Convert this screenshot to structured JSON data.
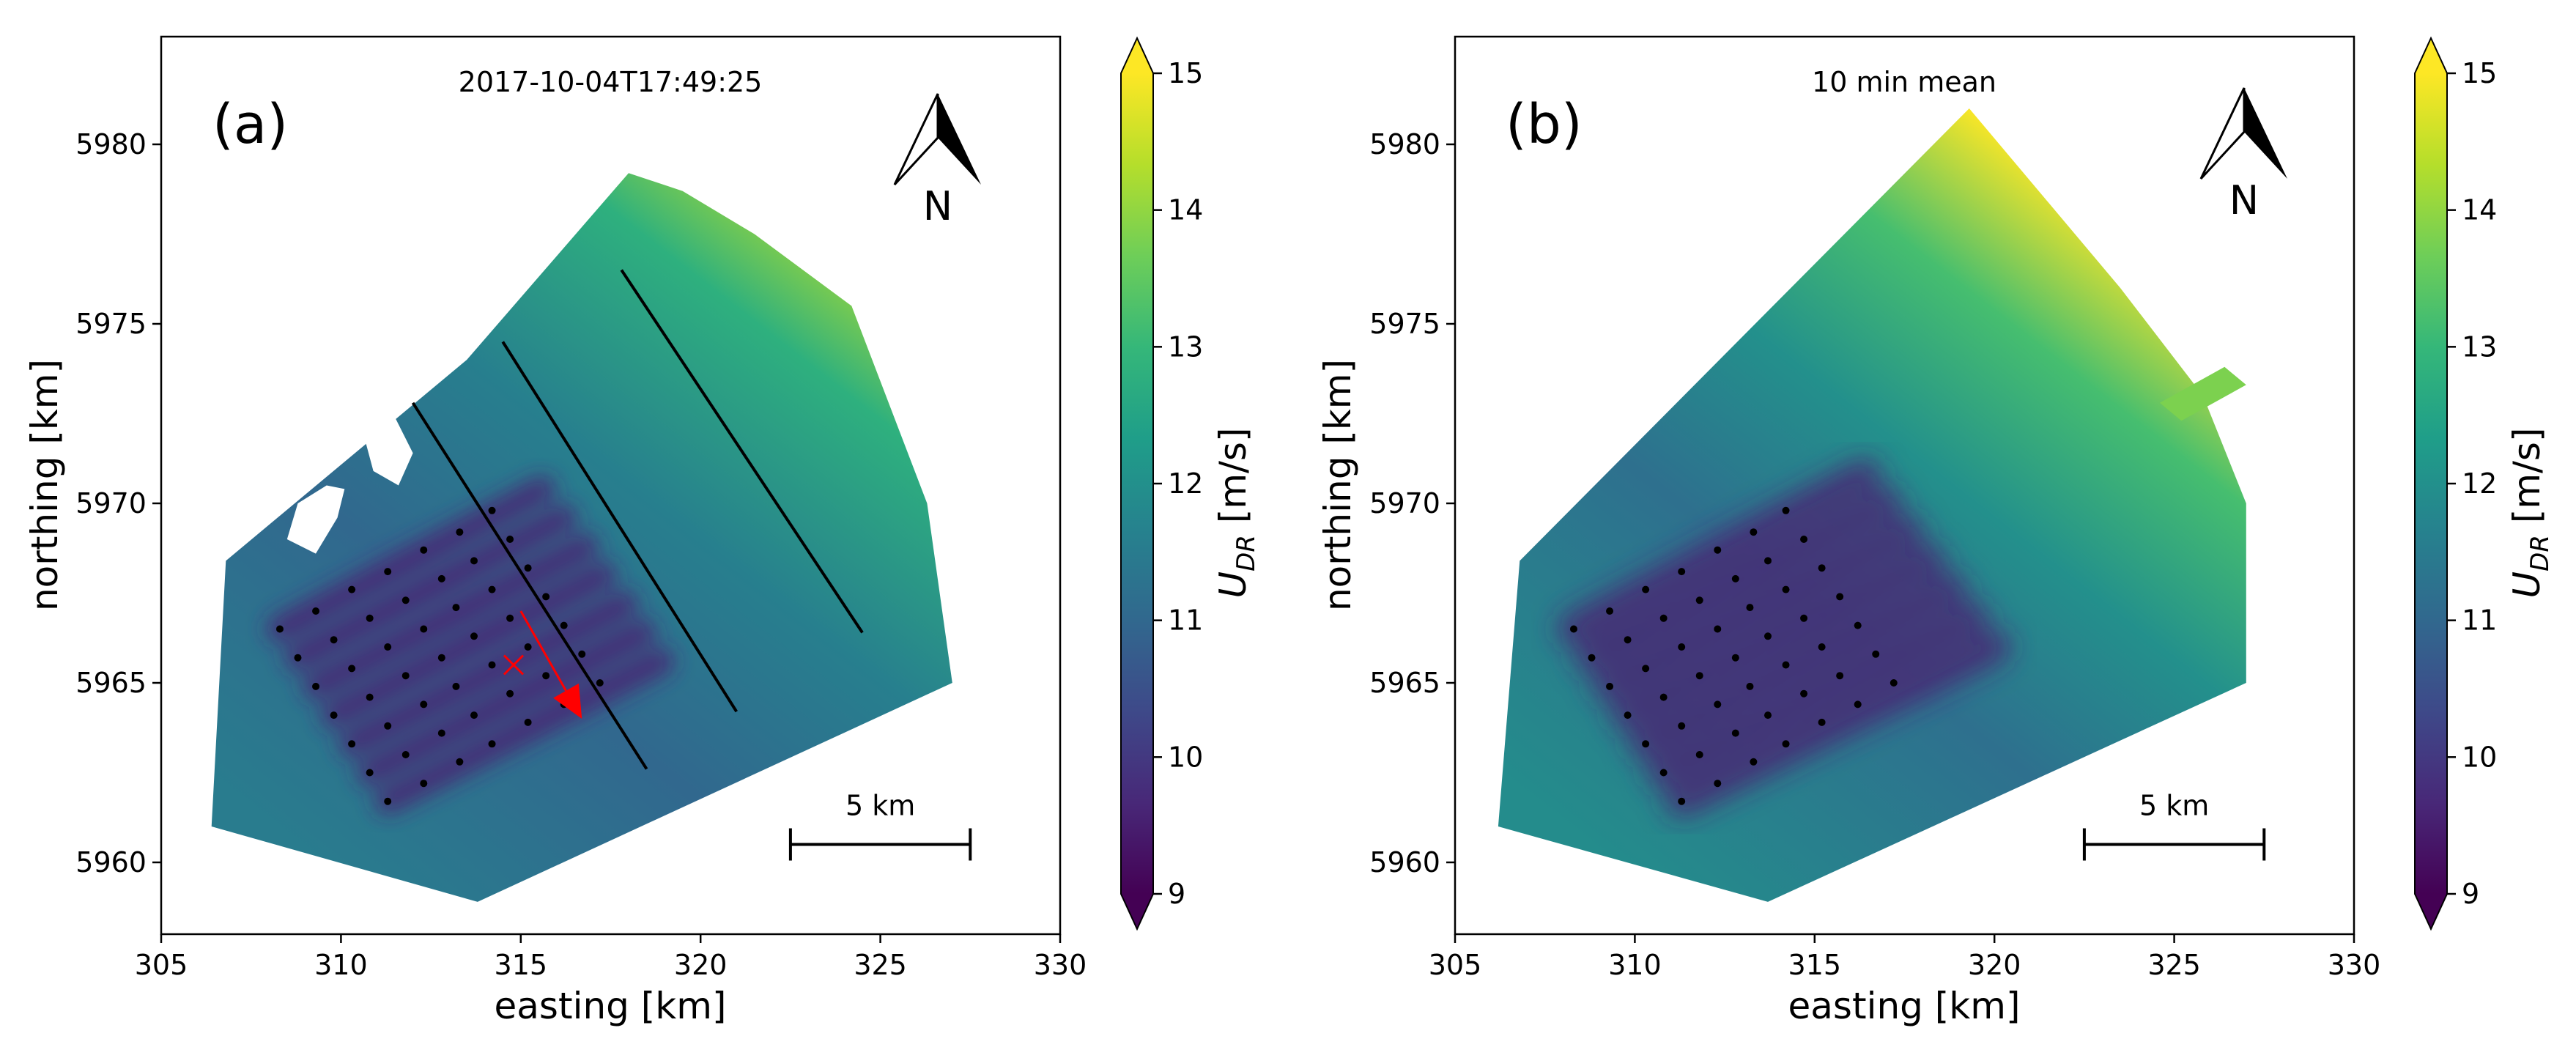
{
  "chart_data": [
    {
      "type": "heatmap",
      "panel_label": "(a)",
      "title": "2017-10-04T17:49:25",
      "xlabel": "easting [km]",
      "ylabel": "northing [km]",
      "xlim": [
        305,
        330
      ],
      "ylim": [
        5958,
        5983
      ],
      "xticks": [
        305,
        310,
        315,
        320,
        325,
        330
      ],
      "yticks": [
        5960,
        5965,
        5970,
        5975,
        5980
      ],
      "colorbar": {
        "label_main": "U",
        "label_sub": "DR",
        "label_unit": " [m/s]",
        "ticks": [
          9,
          10,
          11,
          12,
          13,
          14,
          15
        ],
        "range": [
          9,
          15
        ]
      },
      "north_arrow": "N",
      "scale_bar": {
        "label": "5 km",
        "from": 322.5,
        "to": 327.5,
        "y": 5960.5
      },
      "scan_polygon": [
        [
          306.4,
          5961.0
        ],
        [
          306.8,
          5968.4
        ],
        [
          313.5,
          5974.0
        ],
        [
          318.0,
          5979.2
        ],
        [
          319.5,
          5978.7
        ],
        [
          321.5,
          5977.5
        ],
        [
          324.2,
          5975.5
        ],
        [
          326.3,
          5970.0
        ],
        [
          327.0,
          5965.0
        ],
        [
          313.8,
          5958.9
        ]
      ],
      "invalid_regions": [
        [
          [
            308.5,
            5969.0
          ],
          [
            309.3,
            5968.6
          ],
          [
            309.9,
            5969.6
          ],
          [
            310.1,
            5970.4
          ],
          [
            309.6,
            5970.5
          ],
          [
            308.8,
            5970.0
          ]
        ],
        [
          [
            310.5,
            5972.4
          ],
          [
            311.4,
            5972.6
          ],
          [
            312.0,
            5971.4
          ],
          [
            311.6,
            5970.5
          ],
          [
            310.9,
            5970.9
          ]
        ]
      ],
      "cross_sections": [
        [
          [
            312.0,
            5972.8
          ],
          [
            318.5,
            5962.6
          ]
        ],
        [
          [
            314.5,
            5974.5
          ],
          [
            321.0,
            5964.2
          ]
        ],
        [
          [
            317.8,
            5976.5
          ],
          [
            324.5,
            5966.4
          ]
        ]
      ],
      "wind_arrow": {
        "from": [
          315.0,
          5967.0
        ],
        "to": [
          316.7,
          5964.0
        ]
      },
      "marker_x": [
        314.8,
        5965.5
      ],
      "turbine_rows": [
        [
          [
            308.3,
            5966.5
          ],
          [
            309.3,
            5967.0
          ],
          [
            310.3,
            5967.6
          ],
          [
            311.3,
            5968.1
          ],
          [
            312.3,
            5968.7
          ],
          [
            313.3,
            5969.2
          ],
          [
            314.2,
            5969.8
          ]
        ],
        [
          [
            308.8,
            5965.7
          ],
          [
            309.8,
            5966.2
          ],
          [
            310.8,
            5966.8
          ],
          [
            311.8,
            5967.3
          ],
          [
            312.8,
            5967.9
          ],
          [
            313.7,
            5968.4
          ],
          [
            314.7,
            5969.0
          ]
        ],
        [
          [
            309.3,
            5964.9
          ],
          [
            310.3,
            5965.4
          ],
          [
            311.3,
            5966.0
          ],
          [
            312.3,
            5966.5
          ],
          [
            313.2,
            5967.1
          ],
          [
            314.2,
            5967.6
          ],
          [
            315.2,
            5968.2
          ]
        ],
        [
          [
            309.8,
            5964.1
          ],
          [
            310.8,
            5964.6
          ],
          [
            311.8,
            5965.2
          ],
          [
            312.8,
            5965.7
          ],
          [
            313.7,
            5966.3
          ],
          [
            314.7,
            5966.8
          ],
          [
            315.7,
            5967.4
          ]
        ],
        [
          [
            310.3,
            5963.3
          ],
          [
            311.3,
            5963.8
          ],
          [
            312.3,
            5964.4
          ],
          [
            313.2,
            5964.9
          ],
          [
            314.2,
            5965.5
          ],
          [
            315.2,
            5966.0
          ],
          [
            316.2,
            5966.6
          ]
        ],
        [
          [
            310.8,
            5962.5
          ],
          [
            311.8,
            5963.0
          ],
          [
            312.8,
            5963.6
          ],
          [
            313.7,
            5964.1
          ],
          [
            314.7,
            5964.7
          ],
          [
            315.7,
            5965.2
          ],
          [
            316.7,
            5965.8
          ]
        ],
        [
          [
            311.3,
            5961.7
          ],
          [
            312.3,
            5962.2
          ],
          [
            313.3,
            5962.8
          ],
          [
            314.2,
            5963.3
          ],
          [
            315.2,
            5963.9
          ],
          [
            316.2,
            5964.4
          ],
          [
            317.2,
            5965.0
          ]
        ]
      ],
      "wakes": [
        [
          [
            308.3,
            5966.5
          ],
          [
            315.6,
            5970.4
          ]
        ],
        [
          [
            308.8,
            5965.7
          ],
          [
            316.2,
            5969.6
          ]
        ],
        [
          [
            309.3,
            5964.9
          ],
          [
            316.8,
            5968.8
          ]
        ],
        [
          [
            309.8,
            5964.1
          ],
          [
            317.3,
            5968.0
          ]
        ],
        [
          [
            310.3,
            5963.3
          ],
          [
            317.9,
            5967.2
          ]
        ],
        [
          [
            310.8,
            5962.5
          ],
          [
            318.4,
            5966.4
          ]
        ],
        [
          [
            311.3,
            5961.7
          ],
          [
            318.9,
            5965.6
          ]
        ]
      ],
      "wind_field_stops": [
        {
          "offset": 0.0,
          "value": 11.5
        },
        {
          "offset": 0.35,
          "value": 11.0
        },
        {
          "offset": 0.6,
          "value": 11.6
        },
        {
          "offset": 0.85,
          "value": 12.8
        },
        {
          "offset": 1.0,
          "value": 14.2
        }
      ]
    },
    {
      "type": "heatmap",
      "panel_label": "(b)",
      "title": "10 min mean",
      "xlabel": "easting [km]",
      "ylabel": "northing [km]",
      "xlim": [
        305,
        330
      ],
      "ylim": [
        5958,
        5983
      ],
      "xticks": [
        305,
        310,
        315,
        320,
        325,
        330
      ],
      "yticks": [
        5960,
        5965,
        5970,
        5975,
        5980
      ],
      "colorbar": {
        "label_main": "U",
        "label_sub": "DR",
        "label_unit": " [m/s]",
        "ticks": [
          9,
          10,
          11,
          12,
          13,
          14,
          15
        ],
        "range": [
          9,
          15
        ]
      },
      "north_arrow": "N",
      "scale_bar": {
        "label": "5 km",
        "from": 322.5,
        "to": 327.5,
        "y": 5960.5
      },
      "scan_polygon": [
        [
          306.2,
          5961.0
        ],
        [
          306.8,
          5968.4
        ],
        [
          319.3,
          5981.0
        ],
        [
          323.5,
          5976.0
        ],
        [
          325.8,
          5973.0
        ],
        [
          327.0,
          5970.0
        ],
        [
          327.0,
          5965.0
        ],
        [
          313.7,
          5958.9
        ]
      ],
      "extra_patch": [
        [
          324.6,
          5972.8
        ],
        [
          326.4,
          5973.8
        ],
        [
          327.0,
          5973.3
        ],
        [
          325.2,
          5972.3
        ]
      ],
      "cross_sections": [],
      "wind_arrow": null,
      "marker_x": null,
      "turbine_rows": [
        [
          [
            308.3,
            5966.5
          ],
          [
            309.3,
            5967.0
          ],
          [
            310.3,
            5967.6
          ],
          [
            311.3,
            5968.1
          ],
          [
            312.3,
            5968.7
          ],
          [
            313.3,
            5969.2
          ],
          [
            314.2,
            5969.8
          ]
        ],
        [
          [
            308.8,
            5965.7
          ],
          [
            309.8,
            5966.2
          ],
          [
            310.8,
            5966.8
          ],
          [
            311.8,
            5967.3
          ],
          [
            312.8,
            5967.9
          ],
          [
            313.7,
            5968.4
          ],
          [
            314.7,
            5969.0
          ]
        ],
        [
          [
            309.3,
            5964.9
          ],
          [
            310.3,
            5965.4
          ],
          [
            311.3,
            5966.0
          ],
          [
            312.3,
            5966.5
          ],
          [
            313.2,
            5967.1
          ],
          [
            314.2,
            5967.6
          ],
          [
            315.2,
            5968.2
          ]
        ],
        [
          [
            309.8,
            5964.1
          ],
          [
            310.8,
            5964.6
          ],
          [
            311.8,
            5965.2
          ],
          [
            312.8,
            5965.7
          ],
          [
            313.7,
            5966.3
          ],
          [
            314.7,
            5966.8
          ],
          [
            315.7,
            5967.4
          ]
        ],
        [
          [
            310.3,
            5963.3
          ],
          [
            311.3,
            5963.8
          ],
          [
            312.3,
            5964.4
          ],
          [
            313.2,
            5964.9
          ],
          [
            314.2,
            5965.5
          ],
          [
            315.2,
            5966.0
          ],
          [
            316.2,
            5966.6
          ]
        ],
        [
          [
            310.8,
            5962.5
          ],
          [
            311.8,
            5963.0
          ],
          [
            312.8,
            5963.6
          ],
          [
            313.7,
            5964.1
          ],
          [
            314.7,
            5964.7
          ],
          [
            315.7,
            5965.2
          ],
          [
            316.7,
            5965.8
          ]
        ],
        [
          [
            311.3,
            5961.7
          ],
          [
            312.3,
            5962.2
          ],
          [
            313.3,
            5962.8
          ],
          [
            314.2,
            5963.3
          ],
          [
            315.2,
            5963.9
          ],
          [
            316.2,
            5964.4
          ],
          [
            317.2,
            5965.0
          ]
        ]
      ],
      "wakes": [
        [
          [
            308.3,
            5966.5
          ],
          [
            316.4,
            5970.8
          ]
        ],
        [
          [
            308.8,
            5965.7
          ],
          [
            317.0,
            5970.0
          ]
        ],
        [
          [
            309.3,
            5964.9
          ],
          [
            317.6,
            5969.2
          ]
        ],
        [
          [
            309.8,
            5964.1
          ],
          [
            318.2,
            5968.4
          ]
        ],
        [
          [
            310.3,
            5963.3
          ],
          [
            318.8,
            5967.6
          ]
        ],
        [
          [
            310.8,
            5962.5
          ],
          [
            319.4,
            5966.8
          ]
        ],
        [
          [
            311.3,
            5961.7
          ],
          [
            320.0,
            5966.0
          ]
        ]
      ],
      "wind_field_stops": [
        {
          "offset": 0.0,
          "value": 11.9
        },
        {
          "offset": 0.4,
          "value": 11.2
        },
        {
          "offset": 0.62,
          "value": 12.0
        },
        {
          "offset": 0.82,
          "value": 13.2
        },
        {
          "offset": 1.0,
          "value": 15.0
        }
      ]
    }
  ],
  "colors": {
    "viridis": [
      "#440154",
      "#482878",
      "#3e4989",
      "#31688e",
      "#26828e",
      "#1f9e89",
      "#35b779",
      "#6ece58",
      "#b5de2b",
      "#fde725"
    ],
    "lines": "#000000",
    "arrow": "#ff0000"
  }
}
